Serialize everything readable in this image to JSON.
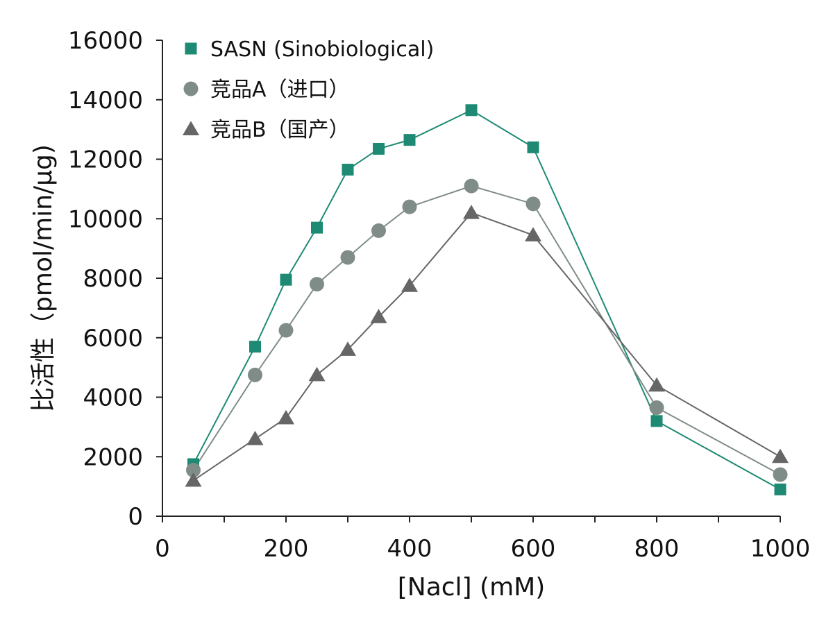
{
  "chart_data": {
    "type": "line",
    "title": "",
    "xlabel": "[Nacl] (mM)",
    "ylabel": "比活性（pmol/min/μg)",
    "xlim": [
      0,
      1000
    ],
    "ylim": [
      0,
      16000
    ],
    "x_ticks": [
      0,
      200,
      400,
      600,
      800,
      1000
    ],
    "x_minor_ticks": [
      100,
      300,
      500,
      700,
      900
    ],
    "y_ticks": [
      0,
      2000,
      4000,
      6000,
      8000,
      10000,
      12000,
      14000,
      16000
    ],
    "x_tick_labels": [
      "0",
      "200",
      "400",
      "600",
      "800",
      "1000"
    ],
    "y_tick_labels": [
      "0",
      "2000",
      "4000",
      "6000",
      "8000",
      "10000",
      "12000",
      "14000",
      "16000"
    ],
    "grid": false,
    "legend_position": "top-left",
    "x": [
      50,
      150,
      200,
      250,
      300,
      350,
      400,
      500,
      600,
      800,
      1000
    ],
    "series": [
      {
        "name": "SASN (Sinobiological)",
        "marker": "square",
        "color": "#1e8a74",
        "values": [
          1750,
          5700,
          7950,
          9700,
          11650,
          12350,
          12650,
          13650,
          12400,
          3200,
          900
        ]
      },
      {
        "name": "竞品A（进口）",
        "marker": "circle",
        "color": "#7f8c87",
        "values": [
          1550,
          4750,
          6250,
          7800,
          8700,
          9600,
          10400,
          11100,
          10500,
          3650,
          1400
        ]
      },
      {
        "name": "竞品B（国产）",
        "marker": "triangle",
        "color": "#666666",
        "values": [
          1200,
          2600,
          3300,
          4750,
          5600,
          6700,
          7750,
          10200,
          9450,
          4400,
          2000
        ]
      }
    ]
  }
}
